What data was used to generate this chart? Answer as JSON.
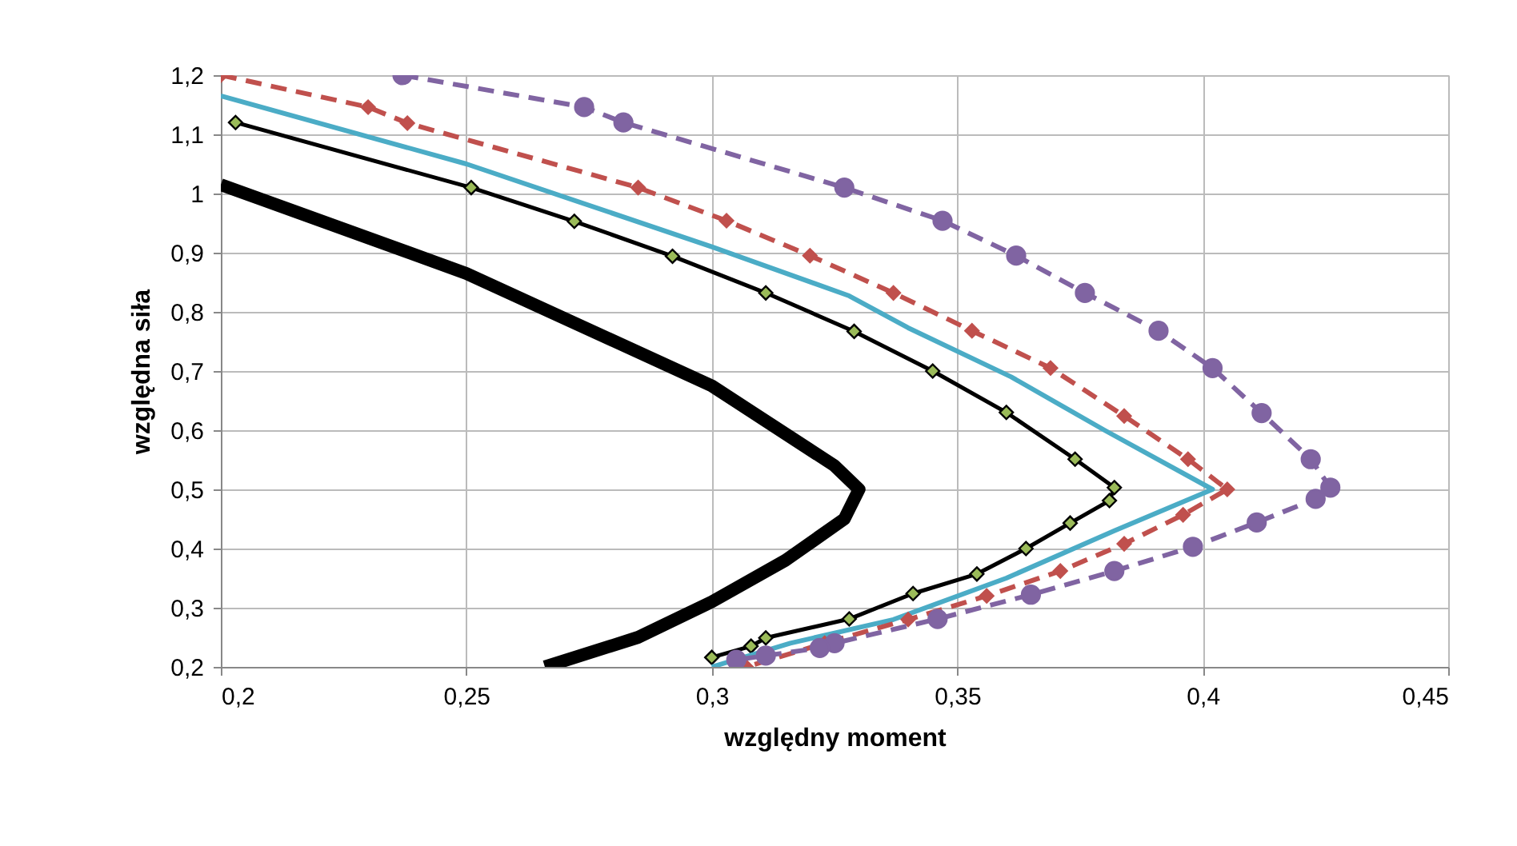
{
  "chart_data": {
    "type": "line",
    "xlabel": "względny moment",
    "ylabel": "względna siła",
    "xlim": [
      0.2,
      0.45
    ],
    "ylim": [
      0.2,
      1.2
    ],
    "xticks": [
      {
        "value": 0.2,
        "label": "0,2"
      },
      {
        "value": 0.25,
        "label": "0,25"
      },
      {
        "value": 0.3,
        "label": "0,3"
      },
      {
        "value": 0.35,
        "label": "0,35"
      },
      {
        "value": 0.4,
        "label": "0,4"
      },
      {
        "value": 0.45,
        "label": "0,45"
      }
    ],
    "yticks": [
      {
        "value": 0.2,
        "label": "0,2"
      },
      {
        "value": 0.3,
        "label": "0,3"
      },
      {
        "value": 0.4,
        "label": "0,4"
      },
      {
        "value": 0.5,
        "label": "0,5"
      },
      {
        "value": 0.6,
        "label": "0,6"
      },
      {
        "value": 0.7,
        "label": "0,7"
      },
      {
        "value": 0.8,
        "label": "0,8"
      },
      {
        "value": 0.9,
        "label": "0,9"
      },
      {
        "value": 1,
        "label": "1"
      },
      {
        "value": 1.1,
        "label": "1,1"
      },
      {
        "value": 1.2,
        "label": "1,2"
      }
    ],
    "grid": true,
    "series": [
      {
        "color": "#000000",
        "marker": "none",
        "line_style": "solid",
        "x": [
          0.2,
          0.25,
          0.3,
          0.325,
          0.33,
          0.327,
          0.315,
          0.3,
          0.285,
          0.266
        ],
        "values": [
          1.015,
          0.865,
          0.675,
          0.54,
          0.5,
          0.45,
          0.38,
          0.31,
          0.25,
          0.2
        ]
      },
      {
        "color": "#000000",
        "marker": "diamond",
        "colors": [
          "#9bbb59",
          "#9bbb59",
          "#9bbb59",
          "#9bbb59",
          "#9bbb59",
          "#9bbb59",
          "#9bbb59",
          "#9bbb59",
          "#9bbb59",
          "#9bbb59",
          "#9bbb59",
          "#9bbb59",
          "#9bbb59",
          "#9bbb59",
          "#9bbb59",
          "#9bbb59",
          "#9bbb59",
          "#9bbb59",
          "#9bbb59"
        ],
        "line_style": "solid",
        "x": [
          0.203,
          0.251,
          0.272,
          0.292,
          0.311,
          0.329,
          0.345,
          0.36,
          0.374,
          0.382,
          0.381,
          0.373,
          0.364,
          0.354,
          0.341,
          0.328,
          0.311,
          0.308,
          0.3
        ],
        "values": [
          1.12,
          1.01,
          0.953,
          0.894,
          0.832,
          0.767,
          0.7,
          0.63,
          0.551,
          0.503,
          0.481,
          0.443,
          0.4,
          0.357,
          0.324,
          0.281,
          0.249,
          0.235,
          0.216
        ]
      },
      {
        "color": "#4bacc6",
        "marker": "none",
        "line_style": "solid",
        "x": [
          0.2,
          0.25,
          0.3,
          0.328,
          0.34,
          0.361,
          0.38,
          0.402,
          0.382,
          0.36,
          0.337,
          0.316,
          0.3
        ],
        "values": [
          1.165,
          1.05,
          0.91,
          0.827,
          0.773,
          0.69,
          0.6,
          0.5,
          0.43,
          0.35,
          0.28,
          0.24,
          0.2
        ]
      },
      {
        "color": "#c0504d",
        "marker": "diamond",
        "line_style": "dashed",
        "x": [
          0.2,
          0.23,
          0.238,
          0.285,
          0.303,
          0.32,
          0.337,
          0.353,
          0.369,
          0.384,
          0.397,
          0.405,
          0.396,
          0.384,
          0.371,
          0.356,
          0.34,
          0.323,
          0.307
        ],
        "values": [
          1.2,
          1.146,
          1.119,
          1.01,
          0.954,
          0.895,
          0.832,
          0.768,
          0.705,
          0.624,
          0.551,
          0.5,
          0.457,
          0.408,
          0.362,
          0.32,
          0.28,
          0.24,
          0.2
        ]
      },
      {
        "color": "#8064a2",
        "marker": "circle",
        "line_style": "dashed",
        "x": [
          0.237,
          0.274,
          0.282,
          0.327,
          0.347,
          0.362,
          0.376,
          0.391,
          0.402,
          0.412,
          0.422,
          0.426,
          0.423,
          0.411,
          0.398,
          0.382,
          0.365,
          0.346,
          0.325,
          0.322,
          0.311,
          0.305
        ],
        "values": [
          1.2,
          1.146,
          1.12,
          1.01,
          0.954,
          0.895,
          0.832,
          0.768,
          0.705,
          0.629,
          0.551,
          0.503,
          0.484,
          0.444,
          0.403,
          0.362,
          0.322,
          0.281,
          0.24,
          0.232,
          0.219,
          0.212
        ]
      }
    ]
  }
}
